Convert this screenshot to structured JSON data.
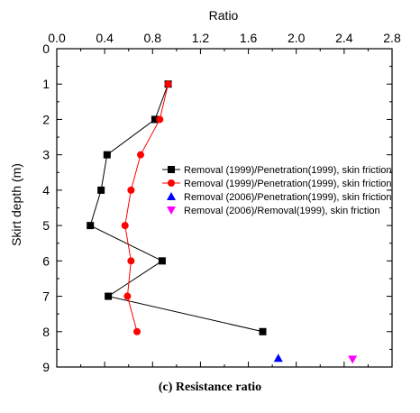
{
  "caption": "(c) Resistance ratio",
  "chart_data": {
    "type": "scatter",
    "title": "",
    "xlabel": "Ratio",
    "ylabel": "Skirt depth (m)",
    "x_axis_position": "top",
    "y_axis_inverted": true,
    "xlim": [
      0.0,
      2.8
    ],
    "ylim": [
      0,
      9
    ],
    "x_ticks": [
      "0.0",
      "0.4",
      "0.8",
      "1.2",
      "1.6",
      "2.0",
      "2.4",
      "2.8"
    ],
    "y_ticks": [
      "0",
      "1",
      "2",
      "3",
      "4",
      "5",
      "6",
      "7",
      "8",
      "9"
    ],
    "grid": false,
    "legend_position": "right-middle",
    "series": [
      {
        "name": "Removal (1999)/Penetration(1999), skin friction",
        "color": "#000000",
        "marker": "square",
        "line": true,
        "points": [
          [
            0.93,
            1
          ],
          [
            0.82,
            2
          ],
          [
            0.42,
            3
          ],
          [
            0.37,
            4
          ],
          [
            0.28,
            5
          ],
          [
            0.88,
            6
          ],
          [
            0.43,
            7
          ],
          [
            1.72,
            8
          ]
        ]
      },
      {
        "name": "Removal (1999)/Penetration(1999), skin friction",
        "color": "#ff0000",
        "marker": "circle",
        "line": true,
        "points": [
          [
            0.93,
            1
          ],
          [
            0.86,
            2
          ],
          [
            0.7,
            3
          ],
          [
            0.62,
            4
          ],
          [
            0.57,
            5
          ],
          [
            0.62,
            6
          ],
          [
            0.59,
            7
          ],
          [
            0.67,
            8
          ]
        ]
      },
      {
        "name": "Removal (2006)/Penetration(1999), skin friction",
        "color": "#0000ff",
        "marker": "triangle-up",
        "line": false,
        "points": [
          [
            1.85,
            8.75
          ]
        ]
      },
      {
        "name": "Removal (2006)/Removal(1999), skin friction",
        "color": "#ff00ff",
        "marker": "triangle-down",
        "line": false,
        "points": [
          [
            2.47,
            8.78
          ]
        ]
      }
    ]
  }
}
